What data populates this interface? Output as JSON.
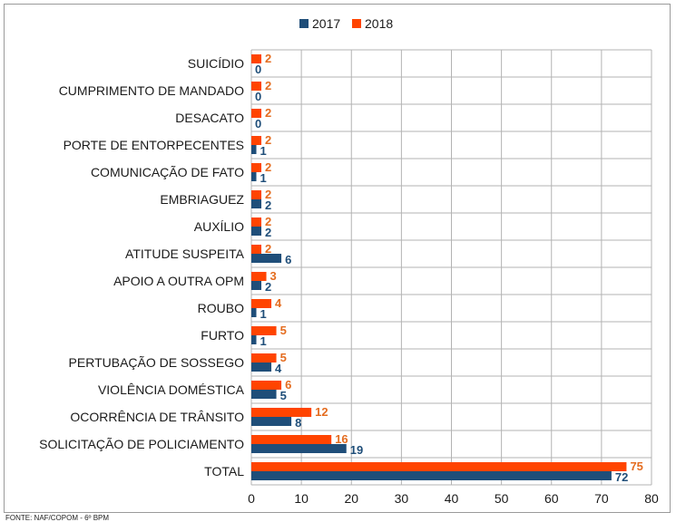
{
  "chart_data": {
    "type": "bar",
    "orientation": "horizontal",
    "categories": [
      "SUICÍDIO",
      "CUMPRIMENTO DE MANDADO",
      "DESACATO",
      "PORTE DE ENTORPECENTES",
      "COMUNICAÇÃO DE FATO",
      "EMBRIAGUEZ",
      "AUXÍLIO",
      "ATITUDE SUSPEITA",
      "APOIO A OUTRA OPM",
      "ROUBO",
      "FURTO",
      "PERTUBAÇÃO DE SOSSEGO",
      "VIOLÊNCIA DOMÉSTICA",
      "OCORRÊNCIA DE TRÂNSITO",
      "SOLICITAÇÃO DE POLICIAMENTO",
      "TOTAL"
    ],
    "series": [
      {
        "name": "2017",
        "color": "#1f4e79",
        "values": [
          0,
          0,
          0,
          1,
          1,
          2,
          2,
          6,
          2,
          1,
          1,
          4,
          5,
          8,
          19,
          72
        ]
      },
      {
        "name": "2018",
        "color": "#ff4400",
        "values": [
          2,
          2,
          2,
          2,
          2,
          2,
          2,
          2,
          3,
          4,
          5,
          5,
          6,
          12,
          16,
          75
        ]
      }
    ],
    "xlim": [
      0,
      80
    ],
    "xticks": [
      0,
      10,
      20,
      30,
      40,
      50,
      60,
      70,
      80
    ],
    "grid": true,
    "legend": "top-center",
    "data_labels": true
  },
  "footer": {
    "source": "FONTE: NAF/COPOM - 6º BPM"
  }
}
